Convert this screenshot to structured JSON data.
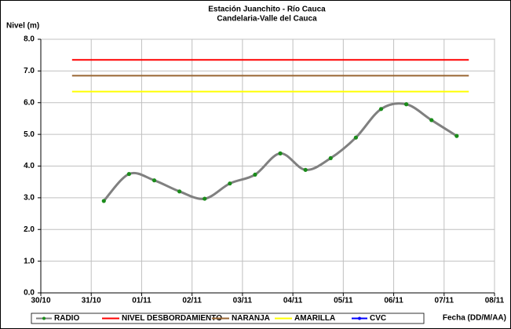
{
  "chart_data": {
    "type": "line",
    "title": "Estación Juanchito - Río Cauca",
    "subtitle": "Candelaria-Valle del Cauca",
    "y_label": "Nivel (m)",
    "x_label": "Fecha (DD/M/AA)",
    "xlim": [
      0,
      9
    ],
    "xticks": [
      {
        "value": 0,
        "label": "30/10"
      },
      {
        "value": 1,
        "label": "31/10"
      },
      {
        "value": 2,
        "label": "01/11"
      },
      {
        "value": 3,
        "label": "02/11"
      },
      {
        "value": 4,
        "label": "03/11"
      },
      {
        "value": 5,
        "label": "04/11"
      },
      {
        "value": 6,
        "label": "05/11"
      },
      {
        "value": 7,
        "label": "06/11"
      },
      {
        "value": 8,
        "label": "07/11"
      },
      {
        "value": 9,
        "label": "08/11"
      }
    ],
    "ylim": [
      0,
      8
    ],
    "yticks": [
      {
        "value": 0,
        "label": "0.0"
      },
      {
        "value": 1,
        "label": "1.0"
      },
      {
        "value": 2,
        "label": "2.0"
      },
      {
        "value": 3,
        "label": "3.0"
      },
      {
        "value": 4,
        "label": "4.0"
      },
      {
        "value": 5,
        "label": "5.0"
      },
      {
        "value": 6,
        "label": "6.0"
      },
      {
        "value": 7,
        "label": "7.0"
      },
      {
        "value": 8,
        "label": "8.0"
      }
    ],
    "grid": true,
    "series": [
      {
        "name": "RADIO",
        "color": "#808080",
        "marker_color": "#1a8c1a",
        "smooth": true,
        "x": [
          1.25,
          1.75,
          2.25,
          2.75,
          3.25,
          3.75,
          4.25,
          4.75,
          5.25,
          5.75,
          6.25,
          6.75,
          7.25,
          7.75,
          8.25
        ],
        "values": [
          2.9,
          3.75,
          3.55,
          3.2,
          2.97,
          3.45,
          3.73,
          4.4,
          3.88,
          4.25,
          4.9,
          5.8,
          5.95,
          5.45,
          4.95
        ]
      },
      {
        "name": "NIVEL DESBORDAMIENTO",
        "color": "#ff0000",
        "x": [
          0.62,
          8.49
        ],
        "values": [
          7.35,
          7.35
        ]
      },
      {
        "name": "NARANJA",
        "color": "#996633",
        "x": [
          0.62,
          8.49
        ],
        "values": [
          6.85,
          6.85
        ]
      },
      {
        "name": "AMARILLA",
        "color": "#ffff00",
        "x": [
          0.62,
          8.49
        ],
        "values": [
          6.35,
          6.35
        ]
      },
      {
        "name": "CVC",
        "color": "#0000ff",
        "marker_color": "#0000ff",
        "x": [],
        "values": []
      }
    ]
  }
}
